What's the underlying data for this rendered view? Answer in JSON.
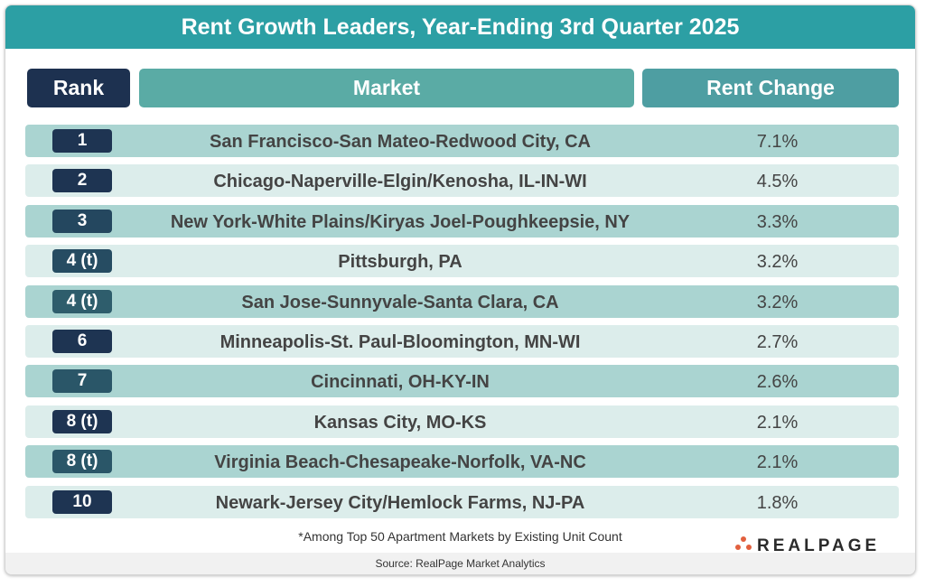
{
  "title": "Rent Growth Leaders, Year-Ending 3rd Quarter 2025",
  "chart_data": {
    "type": "table",
    "title": "Rent Growth Leaders, Year-Ending 3rd Quarter 2025",
    "columns": [
      "Rank",
      "Market",
      "Rent Change"
    ],
    "rows": [
      {
        "rank": "1",
        "market": "San Francisco-San Mateo-Redwood City, CA",
        "change": "7.1%",
        "badge_color": "#1e3452"
      },
      {
        "rank": "2",
        "market": "Chicago-Naperville-Elgin/Kenosha, IL-IN-WI",
        "change": "4.5%",
        "badge_color": "#1e3452"
      },
      {
        "rank": "3",
        "market": "New York-White Plains/Kiryas Joel-Poughkeepsie, NY",
        "change": "3.3%",
        "badge_color": "#24475f"
      },
      {
        "rank": "4 (t)",
        "market": "Pittsburgh, PA",
        "change": "3.2%",
        "badge_color": "#264c62"
      },
      {
        "rank": "4 (t)",
        "market": "San Jose-Sunnyvale-Santa Clara, CA",
        "change": "3.2%",
        "badge_color": "#2e5d6c"
      },
      {
        "rank": "6",
        "market": "Minneapolis-St. Paul-Bloomington, MN-WI",
        "change": "2.7%",
        "badge_color": "#1e3452"
      },
      {
        "rank": "7",
        "market": "Cincinnati, OH-KY-IN",
        "change": "2.6%",
        "badge_color": "#2a5668"
      },
      {
        "rank": "8 (t)",
        "market": "Kansas City, MO-KS",
        "change": "2.1%",
        "badge_color": "#1e3452"
      },
      {
        "rank": "8 (t)",
        "market": "Virginia Beach-Chesapeake-Norfolk, VA-NC",
        "change": "2.1%",
        "badge_color": "#2a5668"
      },
      {
        "rank": "10",
        "market": "Newark-Jersey City/Hemlock Farms, NJ-PA",
        "change": "1.8%",
        "badge_color": "#1e3452"
      }
    ]
  },
  "footnote": "*Among Top 50 Apartment Markets by Existing Unit Count",
  "source": "Source: RealPage Market Analytics",
  "logo_text": "REALPAGE",
  "colors": {
    "title_bar": "#2c9fa4",
    "rank_header": "#1d3150",
    "market_header": "#5aaba5",
    "change_header": "#4e9ea2",
    "row_odd": "#aad4d1",
    "row_even": "#dcedeb",
    "logo_dots": "#e2603e"
  }
}
